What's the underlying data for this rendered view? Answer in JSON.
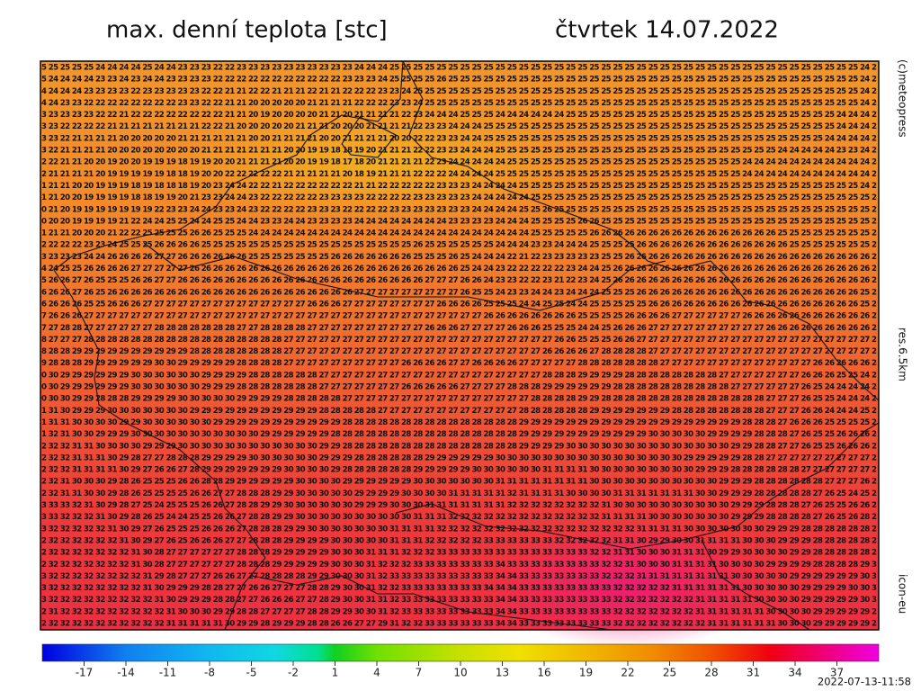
{
  "header": {
    "title": "max. denní teplota [stc]",
    "date": "čtvrtek 14.07.2022"
  },
  "side": {
    "credit": "(c)meteopress",
    "resolution": "res.6.5km",
    "model": "icon-eu"
  },
  "footer": {
    "timestamp": "2022-07-13-11:58"
  },
  "colorbar": {
    "range": [
      -20,
      40
    ],
    "ticks": [
      -17,
      -14,
      -11,
      -8,
      -5,
      -2,
      1,
      4,
      7,
      10,
      13,
      16,
      19,
      22,
      25,
      28,
      31,
      34,
      37
    ]
  },
  "grid": {
    "rows": [
      "5 25 25 25 25 24 24 24 24 25 24 24 23 23 23 22 22 23 23 23 23 23 23 23 23 23 23 24 24 24 25 25 25 25 25 25 25 25 25 25 25 25 25 25 25 25 25 25 25 25 25 25 25 25 25 25 25 25 25 25 25 25 25 25 25 25 25 25 25 25 24 2",
      "5 24 24 24 24 23 23 24 23 24 24 23 23 23 23 22 22 22 22 22 22 22 22 22 22 22 23 23 23 24 25 25 25 25 26 25 25 25 25 25 25 25 25 25 25 25 25 25 25 25 25 25 25 25 25 25 25 25 25 25 25 25 25 25 25 25 25 25 25 25 24 2",
      "4 24 24 24 23 23 23 23 22 23 23 23 23 23 22 22 21 21 22 22 21 21 21 22 21 21 22 22 22 23 23 24 25 25 25 25 25 25 25 25 25 25 25 25 25 25 25 25 25 25 25 25 25 25 25 25 25 25 25 25 25 25 25 25 25 25 25 25 25 25 24 2",
      "4 24 23 23 22 22 22 22 22 22 22 22 23 23 22 22 21 21 20 20 20 20 20 21 21 21 21 22 22 22 23 23 24 25 25 25 25 25 25 25 25 25 25 25 25 25 25 25 25 25 25 25 25 25 25 25 25 25 25 25 25 25 25 25 25 25 25 25 25 25 24 2",
      "3 23 23 23 23 22 22 21 22 22 22 22 22 22 22 22 21 21 20 19 20 20 20 20 21 21 20 21 21 21 21 22 23 24 24 24 25 25 25 24 24 24 24 24 24 25 25 25 25 25 25 25 25 25 25 25 25 25 25 25 25 25 25 25 25 25 25 25 24 24 24 2",
      "3 23 22 22 22 22 21 21 21 21 21 21 21 21 22 22 21 20 20 20 20 20 21 21 21 20 20 20 21 21 21 21 22 23 23 24 24 24 25 25 25 25 25 25 25 25 25 25 25 25 25 25 25 25 25 25 25 25 25 25 25 25 25 25 25 25 25 25 24 24 24 2",
      "3 23 22 21 21 21 21 20 20 20 20 20 21 21 21 21 21 21 20 20 21 21 21 21 20 20 21 21 21 21 20 20 22 22 23 23 24 24 25 25 25 25 25 25 25 25 25 25 25 25 25 25 25 25 25 25 25 25 25 25 25 25 25 25 25 25 25 24 24 24 24 2",
      "3 22 21 21 21 21 20 20 20 20 20 20 20 20 21 21 21 21 21 21 21 20 20 19 19 18 18 19 20 21 21 21 22 22 23 23 24 24 24 25 25 25 25 25 25 25 25 25 25 25 25 25 25 25 25 25 25 25 25 25 25 25 25 24 24 24 24 24 23 23 24 2",
      "2 22 21 21 20 20 19 20 20 19 19 19 18 19 19 20 20 21 21 21 21 20 20 19 19 18 17 18 20 21 21 21 21 22 23 24 24 24 24 24 25 25 25 25 25 25 25 25 25 25 25 25 25 25 25 25 25 25 25 25 24 24 24 24 24 24 24 24 24 24 24 2",
      "2 21 21 21 21 20 19 19 19 19 19 18 18 19 20 20 22 22 22 22 22 21 21 21 21 21 20 18 19 21 21 21 22 22 22 24 24 24 24 25 25 25 25 25 25 25 25 25 25 25 25 25 25 25 25 25 25 25 25 25 24 24 24 24 24 24 24 24 24 24 24 2",
      "1 21 21 20 20 19 19 19 18 19 18 18 18 19 20 23 24 24 22 22 21 22 22 22 22 22 22 21 21 22 22 22 22 22 23 23 23 24 24 24 24 25 25 25 25 25 25 25 25 25 25 25 25 25 25 25 25 25 25 25 25 25 25 25 25 25 25 25 25 25 24 2",
      "1 21 20 20 19 19 19 19 18 18 19 19 20 21 23 23 24 24 23 22 22 22 22 22 23 23 23 23 22 22 22 22 23 23 23 23 23 24 24 24 24 24 25 25 25 25 25 25 25 25 25 25 25 25 25 25 25 25 25 25 25 25 25 25 25 25 25 25 25 25 25 2",
      "0 21 20 19 19 19 19 19 19 19 22 23 23 24 24 23 23 24 23 22 22 22 22 23 23 23 22 22 22 22 23 23 23 23 23 23 23 24 24 24 24 25 25 26 25 25 25 25 25 25 25 25 25 25 25 25 25 25 25 25 25 25 25 25 25 25 25 25 25 25 25 2",
      "0 20 20 19 19 19 19 21 22 24 24 25 25 24 24 25 25 24 24 23 23 24 24 23 23 23 23 24 24 24 24 24 24 24 24 23 23 23 23 24 24 24 25 25 25 25 26 26 25 25 25 25 25 25 25 25 25 25 25 25 25 25 25 25 25 25 25 25 25 25 25 2",
      "1 21 21 20 20 20 21 22 22 25 25 25 25 26 26 25 25 25 24 24 24 24 24 24 24 24 24 24 24 24 24 24 24 24 24 24 24 24 24 24 24 24 25 25 25 25 25 26 26 26 26 26 26 26 26 26 26 26 26 26 26 26 26 25 25 25 25 25 25 25 25 2",
      "2 22 22 22 23 23 24 25 25 25 26 26 26 26 25 25 25 25 25 25 25 25 25 25 25 25 25 25 25 25 25 25 26 25 25 25 25 25 25 24 24 24 23 23 24 24 24 25 25 25 25 26 26 26 26 26 26 26 26 26 26 26 26 26 25 25 25 25 25 25 25 2",
      "3 23 23 23 24 24 26 26 26 26 27 27 26 26 26 26 26 26 25 25 25 25 25 25 25 26 26 26 26 26 26 26 25 25 25 26 25 24 24 24 22 21 22 23 23 23 23 23 25 25 26 26 26 26 26 26 26 26 26 26 26 26 26 26 26 26 26 26 26 26 26 2",
      "4 24 25 25 26 26 26 26 27 27 27 27 27 26 26 26 26 26 26 26 26 26 26 26 26 26 26 26 26 26 26 26 26 26 26 26 25 24 24 23 22 22 22 22 22 23 24 24 25 26 26 26 26 26 26 26 26 26 26 26 26 26 26 26 26 26 26 26 26 26 26 2",
      "5 26 26 27 26 25 25 25 26 26 27 27 26 26 26 26 26 26 26 26 26 26 26 26 26 26 26 26 26 26 26 26 26 27 27 27 26 26 24 23 23 22 22 23 21 22 23 24 25 26 26 26 26 26 26 26 26 26 26 26 26 26 26 26 26 26 26 26 26 26 26 2",
      "6 26 26 27 26 25 26 26 26 26 26 26 26 26 26 26 26 26 26 26 26 26 26 26 26 26 26 27 27 27 27 27 27 27 27 27 26 25 25 24 23 23 24 24 23 24 24 24 25 25 25 26 26 26 26 26 26 26 26 26 26 26 26 26 26 26 26 26 26 26 25 2",
      "6 26 26 26 25 25 26 26 26 27 27 27 27 27 27 27 27 27 27 27 27 27 27 26 26 26 27 27 27 27 27 27 27 27 26 26 26 26 25 25 25 24 24 25 25 24 24 25 25 25 25 25 26 26 26 26 26 26 26 26 26 26 26 26 26 26 26 26 26 26 25 2",
      "7 26 26 26 27 27 27 27 27 27 27 27 27 27 27 27 27 27 27 27 27 27 27 27 27 27 27 27 27 27 27 27 27 27 27 27 27 27 26 26 26 26 26 26 26 26 25 25 25 25 26 26 26 26 27 27 27 27 27 27 26 26 26 26 26 26 26 26 26 26 26 2",
      "7 27 28 28 27 27 27 27 27 27 28 28 28 28 28 28 28 27 27 28 28 28 28 27 27 27 27 27 27 27 27 27 27 26 26 26 27 27 27 27 26 26 26 25 25 25 24 24 25 26 26 26 27 27 27 27 27 27 27 27 27 27 26 26 26 26 26 26 26 26 26 2",
      "8 27 27 27 28 28 28 28 28 28 28 28 28 28 28 28 28 28 28 28 28 27 27 27 27 27 27 27 27 27 27 27 27 27 27 27 27 27 27 27 27 27 27 27 26 26 25 25 25 26 26 27 27 27 27 27 27 27 27 27 27 27 27 27 27 27 27 27 27 27 27 2",
      "8 28 28 29 29 29 29 29 29 29 29 29 29 28 28 28 28 28 28 28 28 27 27 27 27 27 27 27 27 27 27 27 27 27 27 27 27 27 27 27 27 27 27 26 26 26 26 27 28 28 28 28 27 27 27 27 27 27 27 27 27 27 27 27 27 27 27 27 27 27 27 2",
      "9 28 28 28 29 29 29 29 29 29 30 30 29 29 29 29 29 28 28 28 28 27 27 27 27 27 27 27 27 27 27 26 26 26 26 27 27 26 26 26 26 27 27 27 27 27 28 28 28 28 28 28 28 27 27 27 27 27 27 27 27 27 27 27 27 27 26 26 26 26 26 2",
      "0 30 29 29 29 29 29 29 30 30 30 30 30 30 29 29 29 29 28 28 28 28 28 28 27 27 27 27 27 27 27 27 27 27 27 27 27 27 27 27 27 27 27 28 28 28 29 29 29 29 28 28 28 28 28 28 28 28 27 27 27 27 27 27 27 26 26 26 25 25 24 2",
      "0 30 29 29 29 29 29 29 30 30 30 30 30 30 29 29 29 28 28 28 28 28 28 28 27 27 27 27 27 27 27 26 26 26 26 26 27 27 27 27 28 28 28 29 29 29 29 29 29 28 28 28 28 28 28 28 28 28 28 27 27 27 27 27 27 26 25 24 24 24 24 2",
      "0 30 30 29 29 28 28 28 29 29 29 29 30 30 30 30 30 29 29 29 29 28 28 28 28 28 27 27 27 27 27 27 27 27 27 27 27 27 27 27 27 27 28 28 28 28 29 29 28 28 28 28 28 28 28 28 28 28 28 28 28 28 27 27 27 26 25 25 24 24 24 2",
      "1 31 30 29 29 29 30 30 30 30 30 30 30 29 29 29 29 29 29 29 29 29 29 29 28 28 28 28 28 27 27 27 27 27 27 27 27 27 27 27 27 28 28 28 28 28 28 29 29 29 29 29 29 29 28 28 28 28 28 28 28 28 27 27 27 26 26 24 24 24 25 2",
      "1 31 31 30 30 30 30 29 29 30 30 30 30 30 30 29 29 29 29 29 29 29 29 29 29 29 28 28 28 28 28 28 28 28 28 28 28 28 28 28 28 29 29 29 29 29 29 29 29 29 29 29 29 29 29 29 29 29 29 29 28 28 28 27 26 26 26 25 25 25 25 2",
      "1 32 31 30 30 29 29 29 30 30 30 30 30 30 30 30 30 30 30 29 29 29 29 29 29 28 28 28 28 28 28 28 28 28 28 28 28 28 28 28 28 29 29 29 29 29 29 29 29 29 29 29 30 30 30 30 30 29 29 29 29 28 28 28 27 26 25 25 26 26 26 2",
      "2 32 32 31 31 30 30 30 30 29 29 29 30 30 30 30 30 30 30 30 30 30 30 30 29 29 28 28 28 28 28 28 28 28 28 28 28 28 28 28 28 29 29 29 29 30 30 30 30 30 30 30 30 30 30 30 30 30 30 29 29 28 28 27 27 26 25 25 26 26 26 2",
      "2 32 32 31 31 31 30 29 28 27 27 28 28 28 29 29 29 29 30 30 30 30 30 30 29 29 29 28 28 28 28 28 28 29 29 29 29 29 29 30 30 30 30 30 30 30 30 30 30 30 30 30 30 30 30 29 29 29 29 29 28 28 27 27 27 27 27 27 27 27 27 2",
      "2 32 32 31 31 31 31 30 29 27 26 26 27 28 29 29 29 29 29 29 29 30 30 30 30 29 28 28 28 28 28 28 29 29 29 29 29 30 30 30 30 30 30 31 31 31 31 30 30 30 30 30 30 30 30 30 29 29 29 28 28 28 28 28 28 27 27 27 27 27 27 2",
      "2 32 31 30 30 30 29 28 26 25 25 25 26 26 28 28 29 29 29 29 29 29 30 30 30 30 29 29 29 29 29 29 30 30 30 30 30 30 30 31 31 31 31 31 31 31 31 30 30 30 30 30 30 30 30 30 30 30 29 29 29 28 28 28 28 28 28 27 27 27 26 2",
      "2 32 31 31 30 30 29 28 26 25 25 25 25 26 26 27 27 28 28 28 29 29 30 30 30 30 30 29 29 29 29 30 30 30 30 31 31 31 31 31 32 31 31 31 31 30 30 30 30 31 31 31 31 31 31 31 30 30 29 29 29 28 28 28 28 28 27 26 25 24 25 2",
      "3 33 33 32 31 30 29 28 27 25 24 25 25 25 26 26 27 28 28 29 29 30 30 30 30 30 30 29 29 29 30 30 30 31 31 31 31 31 31 31 32 32 32 32 32 32 32 32 31 30 30 30 30 30 30 30 30 30 30 29 29 29 28 28 28 27 26 25 25 26 26 2",
      "3 33 32 32 32 31 30 29 28 26 25 24 24 25 25 26 26 27 28 28 29 29 30 30 30 30 30 30 30 30 30 30 31 31 31 32 32 32 32 32 32 32 32 32 32 32 32 32 31 31 31 31 30 30 30 30 30 30 30 29 29 29 28 28 28 28 27 26 25 26 28 2",
      "3 32 32 32 32 32 31 30 29 27 26 25 25 25 26 26 26 27 28 28 28 29 29 30 30 30 30 30 30 30 31 31 31 31 32 32 32 32 32 32 32 32 32 32 32 32 32 32 32 32 32 31 31 31 31 30 30 30 30 30 30 30 29 29 29 28 28 28 28 28 28 2",
      "2 32 32 32 32 32 32 31 30 29 27 26 25 26 26 26 27 27 28 28 28 29 29 29 29 30 30 30 30 30 31 31 31 32 32 32 32 32 33 33 33 33 33 33 32 32 32 32 32 31 31 30 29 29 30 30 31 31 31 31 30 30 30 29 29 29 28 28 28 28 28 2",
      "2 32 32 32 32 32 32 32 31 30 28 27 27 27 27 27 27 28 28 28 29 29 29 29 29 30 30 30 31 31 31 32 32 32 33 33 33 33 33 33 33 33 33 33 33 33 33 32 32 31 31 30 30 30 31 31 31 30 29 29 30 30 30 30 29 29 28 28 28 28 28 2",
      "2 32 32 32 32 32 32 32 31 30 28 27 27 27 27 27 27 28 28 28 29 29 29 29 29 30 30 30 31 32 32 32 33 33 33 33 33 33 33 34 33 33 33 33 33 33 33 33 32 32 31 30 30 30 31 31 31 31 30 30 30 30 29 29 29 29 28 28 28 28 29 3",
      "3 32 32 32 32 32 32 32 32 31 29 28 27 27 27 26 26 27 27 28 28 28 28 29 29 30 30 30 31 32 33 33 33 33 33 33 33 33 33 34 34 33 33 33 33 33 33 33 32 32 32 31 31 31 31 31 31 31 31 30 30 30 30 30 29 29 29 29 29 29 30 3",
      "3 32 32 32 32 32 32 32 32 31 30 29 29 29 28 28 27 27 26 26 27 27 27 28 28 29 30 30 31 32 32 33 33 33 33 33 33 33 34 34 34 33 33 33 33 33 33 33 33 32 32 32 32 32 31 31 31 31 31 31 30 30 30 30 30 29 29 29 29 30 30 3",
      "3 32 32 32 32 32 32 32 32 32 31 30 29 29 29 28 28 27 27 26 26 26 27 27 28 29 30 30 31 31 32 33 33 33 33 33 33 33 33 34 34 33 33 33 33 33 33 33 33 32 32 32 32 32 32 32 31 31 31 31 31 30 30 30 30 29 29 29 29 29 30 3",
      "2 31 32 32 32 32 32 32 32 32 32 31 30 30 30 29 29 28 28 27 27 27 27 28 28 29 29 30 30 31 32 33 33 33 33 33 33 33 33 34 34 33 33 33 33 33 33 33 33 32 32 32 32 32 32 32 31 31 31 31 31 31 30 30 30 30 29 29 29 29 29 2",
      "2 32 32 32 32 32 32 32 32 32 32 31 31 31 31 31 30 29 29 28 29 29 29 28 28 26 26 27 27 29 31 32 32 33 33 33 33 33 33 34 34 33 33 33 33 33 33 33 33 32 32 32 32 32 32 32 32 31 31 31 31 31 31 30 30 30 29 29 29 29 29 2"
    ]
  }
}
